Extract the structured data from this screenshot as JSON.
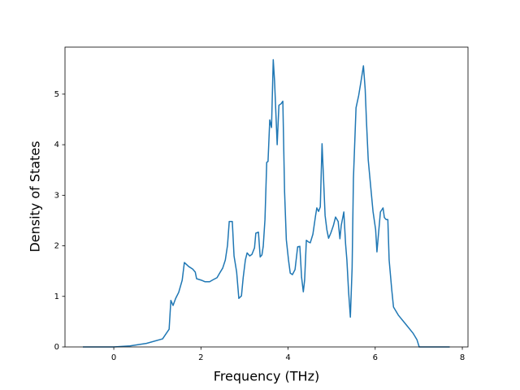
{
  "chart_data": {
    "type": "line",
    "xlabel": "Frequency (THz)",
    "ylabel": "Density of States",
    "color": "#1f77b4",
    "xlim": [
      -1.12,
      8.13
    ],
    "ylim": [
      0,
      5.93
    ],
    "xticks": [
      0,
      2,
      4,
      6,
      8
    ],
    "yticks": [
      0,
      1,
      2,
      3,
      4,
      5
    ],
    "grid": false,
    "x": [
      -0.71,
      0,
      0.37,
      0.75,
      1.12,
      1.27,
      1.31,
      1.36,
      1.42,
      1.49,
      1.57,
      1.62,
      1.72,
      1.81,
      1.87,
      1.9,
      2.01,
      2.09,
      2.2,
      2.28,
      2.37,
      2.43,
      2.5,
      2.56,
      2.61,
      2.65,
      2.72,
      2.76,
      2.82,
      2.87,
      2.93,
      2.97,
      3.02,
      3.06,
      3.12,
      3.17,
      3.23,
      3.26,
      3.32,
      3.36,
      3.4,
      3.43,
      3.47,
      3.51,
      3.54,
      3.58,
      3.62,
      3.66,
      3.69,
      3.75,
      3.79,
      3.84,
      3.88,
      3.92,
      3.96,
      4.01,
      4.05,
      4.1,
      4.16,
      4.22,
      4.27,
      4.31,
      4.35,
      4.38,
      4.42,
      4.48,
      4.51,
      4.57,
      4.63,
      4.66,
      4.7,
      4.74,
      4.78,
      4.81,
      4.85,
      4.89,
      4.93,
      4.98,
      5.04,
      5.09,
      5.15,
      5.19,
      5.22,
      5.28,
      5.32,
      5.35,
      5.39,
      5.43,
      5.47,
      5.5,
      5.56,
      5.62,
      5.67,
      5.73,
      5.77,
      5.8,
      5.84,
      5.9,
      5.95,
      6.01,
      6.04,
      6.08,
      6.12,
      6.18,
      6.21,
      6.25,
      6.29,
      6.32,
      6.38,
      6.42,
      6.53,
      6.72,
      6.87,
      6.96,
      7.01,
      7.28,
      7.71
    ],
    "values": [
      0,
      0,
      0.02,
      0.07,
      0.16,
      0.35,
      0.92,
      0.82,
      0.96,
      1.08,
      1.32,
      1.67,
      1.59,
      1.54,
      1.48,
      1.35,
      1.32,
      1.29,
      1.29,
      1.33,
      1.37,
      1.46,
      1.56,
      1.72,
      2.01,
      2.48,
      2.48,
      1.8,
      1.48,
      0.96,
      1.01,
      1.37,
      1.72,
      1.86,
      1.8,
      1.83,
      1.96,
      2.25,
      2.27,
      1.78,
      1.82,
      1.99,
      2.52,
      3.65,
      3.67,
      4.49,
      4.34,
      5.68,
      5.26,
      4.0,
      4.78,
      4.81,
      4.86,
      3.07,
      2.12,
      1.72,
      1.46,
      1.43,
      1.53,
      1.98,
      1.99,
      1.38,
      1.09,
      1.32,
      2.11,
      2.07,
      2.06,
      2.23,
      2.59,
      2.75,
      2.68,
      2.77,
      4.02,
      3.41,
      2.6,
      2.32,
      2.15,
      2.25,
      2.4,
      2.57,
      2.48,
      2.14,
      2.4,
      2.67,
      2.04,
      1.72,
      1.08,
      0.59,
      1.56,
      3.33,
      4.73,
      4.97,
      5.23,
      5.56,
      5.1,
      4.45,
      3.7,
      3.14,
      2.68,
      2.32,
      1.88,
      2.28,
      2.67,
      2.75,
      2.56,
      2.52,
      2.52,
      1.72,
      1.13,
      0.79,
      0.63,
      0.43,
      0.27,
      0.14,
      0,
      0,
      0
    ]
  }
}
